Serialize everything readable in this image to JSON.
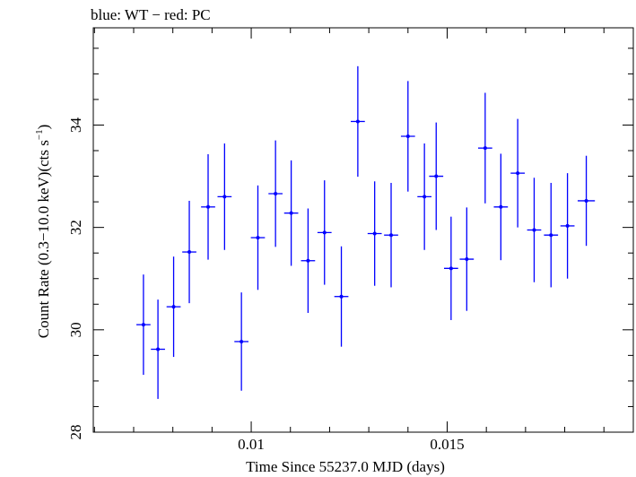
{
  "chart_data": {
    "type": "scatter",
    "title": "blue: WT − red: PC",
    "xlabel": "Time Since 55237.0 MJD (days)",
    "ylabel_main": "Count Rate (0.3−10.0 keV)(cts s",
    "ylabel_sup": "−1",
    "ylabel_close": ")",
    "xlim": [
      0.00597,
      0.01975
    ],
    "ylim": [
      28,
      35.9
    ],
    "x_ticks_major": [
      0.01,
      0.015
    ],
    "x_tick_labels": [
      "0.01",
      "0.015"
    ],
    "y_ticks_major": [
      28,
      30,
      32,
      34
    ],
    "y_tick_labels": [
      "28",
      "30",
      "32",
      "34"
    ],
    "series": [
      {
        "name": "WT",
        "color": "#0000ff",
        "points": [
          {
            "x": 0.00725,
            "y": 30.1,
            "xerr": 0.00018,
            "yerr": 0.98
          },
          {
            "x": 0.00762,
            "y": 29.62,
            "xerr": 0.00018,
            "yerr": 0.97
          },
          {
            "x": 0.00802,
            "y": 30.45,
            "xerr": 0.00018,
            "yerr": 0.98
          },
          {
            "x": 0.00842,
            "y": 31.52,
            "xerr": 0.00018,
            "yerr": 1.0
          },
          {
            "x": 0.0089,
            "y": 32.4,
            "xerr": 0.00018,
            "yerr": 1.03
          },
          {
            "x": 0.00932,
            "y": 32.6,
            "xerr": 0.00018,
            "yerr": 1.04
          },
          {
            "x": 0.00975,
            "y": 29.77,
            "xerr": 0.00018,
            "yerr": 0.96
          },
          {
            "x": 0.01017,
            "y": 31.8,
            "xerr": 0.00018,
            "yerr": 1.02
          },
          {
            "x": 0.01062,
            "y": 32.66,
            "xerr": 0.00018,
            "yerr": 1.04
          },
          {
            "x": 0.01102,
            "y": 32.28,
            "xerr": 0.00018,
            "yerr": 1.03
          },
          {
            "x": 0.01145,
            "y": 31.35,
            "xerr": 0.00018,
            "yerr": 1.02
          },
          {
            "x": 0.01187,
            "y": 31.9,
            "xerr": 0.00018,
            "yerr": 1.02
          },
          {
            "x": 0.0123,
            "y": 30.65,
            "xerr": 0.00018,
            "yerr": 0.98
          },
          {
            "x": 0.01272,
            "y": 34.07,
            "xerr": 0.00018,
            "yerr": 1.08
          },
          {
            "x": 0.01315,
            "y": 31.88,
            "xerr": 0.00018,
            "yerr": 1.02
          },
          {
            "x": 0.01357,
            "y": 31.85,
            "xerr": 0.00018,
            "yerr": 1.02
          },
          {
            "x": 0.014,
            "y": 33.78,
            "xerr": 0.00018,
            "yerr": 1.08
          },
          {
            "x": 0.01442,
            "y": 32.6,
            "xerr": 0.00018,
            "yerr": 1.04
          },
          {
            "x": 0.01472,
            "y": 33.0,
            "xerr": 0.00018,
            "yerr": 1.05
          },
          {
            "x": 0.0151,
            "y": 31.2,
            "xerr": 0.00018,
            "yerr": 1.01
          },
          {
            "x": 0.0155,
            "y": 31.38,
            "xerr": 0.00018,
            "yerr": 1.01
          },
          {
            "x": 0.01597,
            "y": 33.55,
            "xerr": 0.00018,
            "yerr": 1.08
          },
          {
            "x": 0.01637,
            "y": 32.4,
            "xerr": 0.00018,
            "yerr": 1.04
          },
          {
            "x": 0.0168,
            "y": 33.06,
            "xerr": 0.00018,
            "yerr": 1.06
          },
          {
            "x": 0.01722,
            "y": 31.95,
            "xerr": 0.00018,
            "yerr": 1.02
          },
          {
            "x": 0.01765,
            "y": 31.85,
            "xerr": 0.00018,
            "yerr": 1.02
          },
          {
            "x": 0.01807,
            "y": 32.03,
            "xerr": 0.00018,
            "yerr": 1.03
          },
          {
            "x": 0.01855,
            "y": 32.52,
            "xerr": 0.00022,
            "yerr": 0.88
          }
        ]
      }
    ]
  }
}
